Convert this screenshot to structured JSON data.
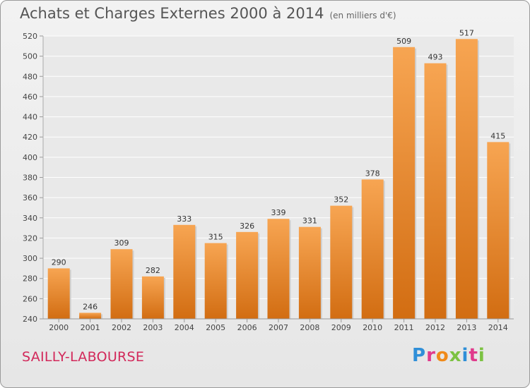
{
  "header": {
    "title": "Achats et Charges Externes 2000 à 2014",
    "subtitle": "(en milliers d'€)"
  },
  "footer": {
    "city": "SAILLY-LABOURSE",
    "logo_text": "Proxiti"
  },
  "colors": {
    "bar_top": "#f7a552",
    "bar_bottom": "#d26d12",
    "city": "#d2285a",
    "grid": "#ffffff"
  },
  "chart_data": {
    "type": "bar",
    "categories": [
      "2000",
      "2001",
      "2002",
      "2003",
      "2004",
      "2005",
      "2006",
      "2007",
      "2008",
      "2009",
      "2010",
      "2011",
      "2012",
      "2013",
      "2014"
    ],
    "values": [
      290,
      246,
      309,
      282,
      333,
      315,
      326,
      339,
      331,
      352,
      378,
      509,
      493,
      517,
      415
    ],
    "ylim": [
      240,
      520
    ],
    "yticks": [
      240,
      260,
      280,
      300,
      320,
      340,
      360,
      380,
      400,
      420,
      440,
      460,
      480,
      500,
      520
    ],
    "grid": true
  }
}
